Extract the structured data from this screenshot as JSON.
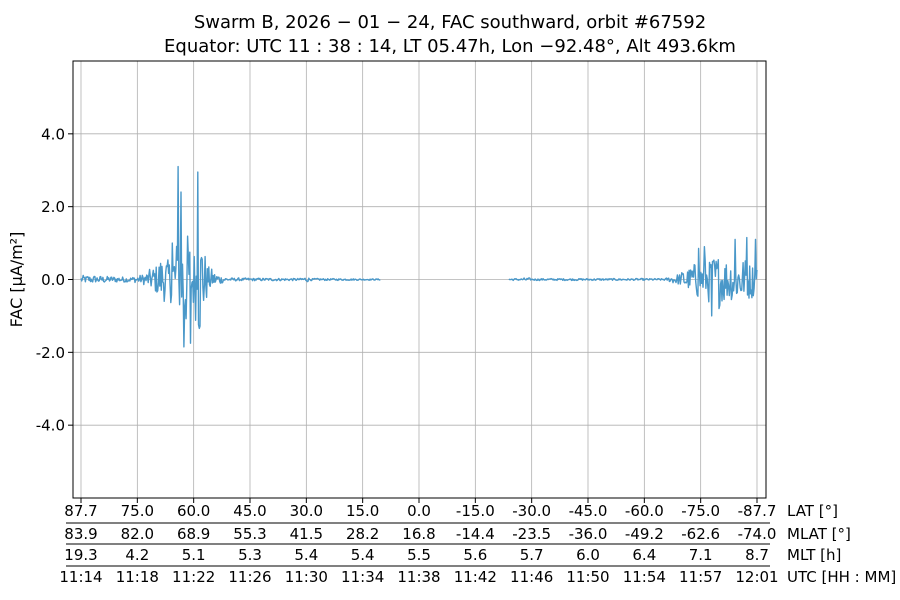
{
  "title_line1": "Swarm B,  2026 − 01 − 24,  FAC southward,  orbit #67592",
  "title_line2": "Equator:  UTC 11 : 38 : 14,  LT 05.47h,  Lon  −92.48°,  Alt 493.6km",
  "chart_data": {
    "type": "line",
    "ylabel": "FAC [μA/m²]",
    "ylim": [
      -6,
      6
    ],
    "yticks": [
      4.0,
      2.0,
      0.0,
      -2.0,
      -4.0
    ],
    "ytick_labels": [
      "4.0",
      "2.0",
      "0.0",
      "-2.0",
      "-4.0"
    ],
    "grid": true,
    "line_color": "#4a98c9",
    "x_axis_rows": [
      {
        "label": "LAT [°]",
        "ticks": [
          "87.7",
          "75.0",
          "60.0",
          "45.0",
          "30.0",
          "15.0",
          "0.0",
          "-15.0",
          "-30.0",
          "-45.0",
          "-60.0",
          "-75.0",
          "-87.7"
        ]
      },
      {
        "label": "MLAT [°]",
        "ticks": [
          "83.9",
          "82.0",
          "68.9",
          "55.3",
          "41.5",
          "28.2",
          "16.8",
          "-14.4",
          "-23.5",
          "-36.0",
          "-49.2",
          "-62.6",
          "-74.0"
        ]
      },
      {
        "label": "MLT [h]",
        "ticks": [
          "19.3",
          "4.2",
          "5.1",
          "5.3",
          "5.4",
          "5.4",
          "5.5",
          "5.6",
          "5.7",
          "6.0",
          "6.4",
          "7.1",
          "8.7"
        ]
      },
      {
        "label": "UTC [HH : MM]",
        "ticks": [
          "11:14",
          "11:18",
          "11:22",
          "11:26",
          "11:30",
          "11:34",
          "11:38",
          "11:42",
          "11:46",
          "11:50",
          "11:54",
          "11:57",
          "12:01"
        ]
      }
    ],
    "series": [
      {
        "x_range_minutes": [
          674.5,
          720.8
        ],
        "segments": [
          {
            "t_start": 674.5,
            "t_end": 695.0,
            "step": 0.05,
            "envelope": [
              [
                674.5,
                0.13
              ],
              [
                678.0,
                0.08
              ],
              [
                678.8,
                0.18
              ],
              [
                679.5,
                0.4
              ],
              [
                680.0,
                0.8
              ],
              [
                680.5,
                0.55
              ],
              [
                680.8,
                0.9
              ],
              [
                681.2,
                1.4
              ],
              [
                681.5,
                1.6
              ],
              [
                681.8,
                1.5
              ],
              [
                682.2,
                1.0
              ],
              [
                682.6,
                1.8
              ],
              [
                683.2,
                0.45
              ],
              [
                683.8,
                0.2
              ],
              [
                684.5,
                0.05
              ],
              [
                695.0,
                0.02
              ]
            ],
            "bumps": [
              [
                689.8,
                0.3,
                0.07
              ]
            ],
            "spikes": [
              [
                681.15,
                3.1
              ],
              [
                681.55,
                -1.85
              ],
              [
                682.0,
                -1.75
              ],
              [
                682.5,
                2.95
              ],
              [
                681.35,
                2.4
              ],
              [
                680.75,
                1.0
              ]
            ]
          },
          {
            "t_start": 703.8,
            "t_end": 720.8,
            "step": 0.05,
            "envelope": [
              [
                703.8,
                0.03
              ],
              [
                714.5,
                0.03
              ],
              [
                715.5,
                0.2
              ],
              [
                716.5,
                0.5
              ],
              [
                717.5,
                0.7
              ],
              [
                718.5,
                0.75
              ],
              [
                719.8,
                0.7
              ],
              [
                720.5,
                0.6
              ],
              [
                720.8,
                0.55
              ]
            ],
            "bumps": [
              [
                705.0,
                0.2,
                0.05
              ]
            ],
            "spikes": [
              [
                720.1,
                1.15
              ],
              [
                719.3,
                1.1
              ],
              [
                717.7,
                -1.0
              ],
              [
                716.8,
                0.85
              ],
              [
                718.2,
                -0.8
              ],
              [
                720.7,
                1.1
              ],
              [
                717.2,
                0.9
              ]
            ]
          }
        ]
      }
    ]
  }
}
